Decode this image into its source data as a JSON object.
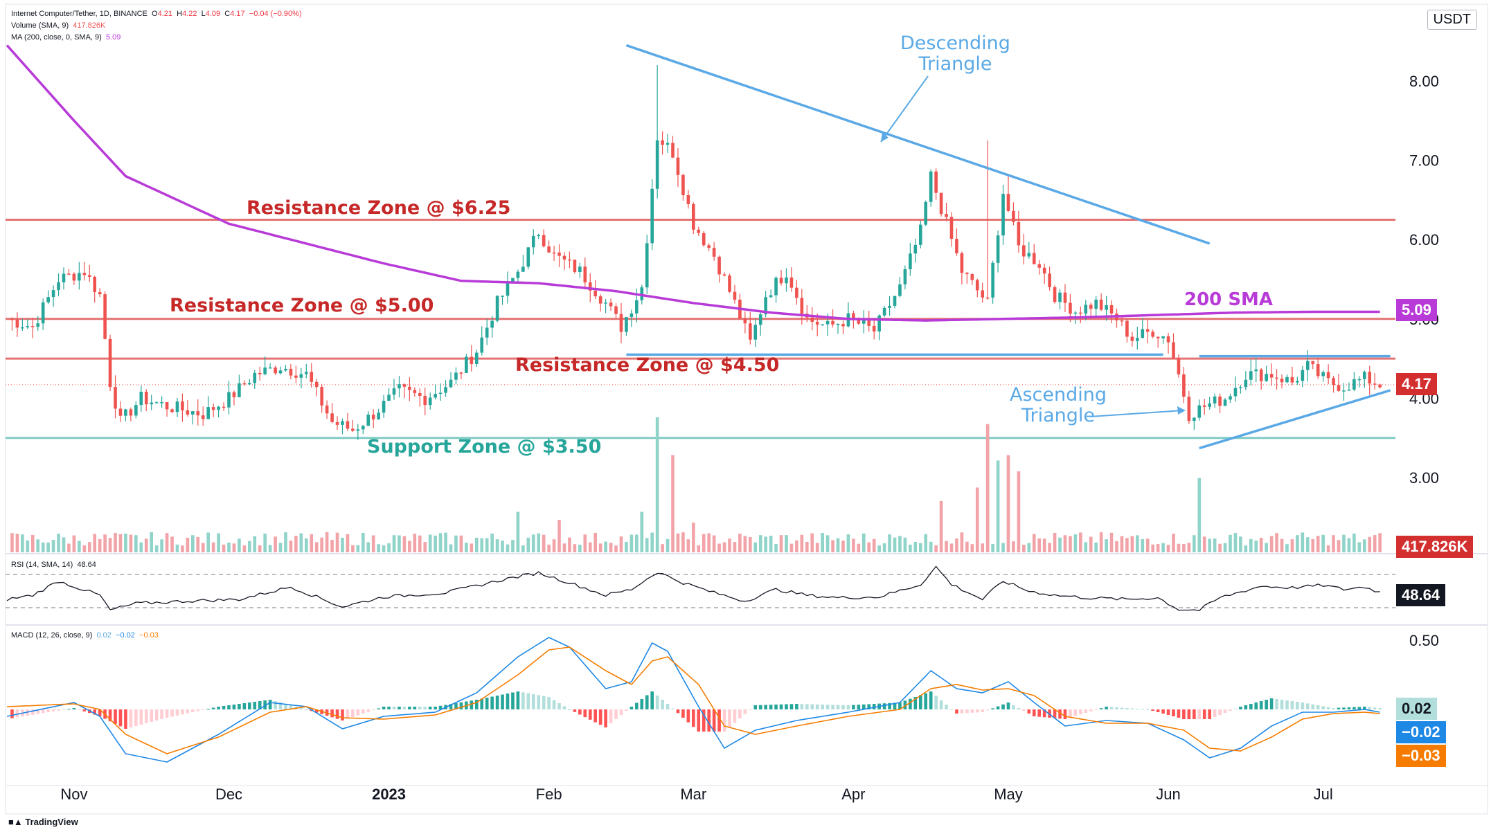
{
  "header": {
    "symbol": "Internet Computer/Tether, 1D, BINANCE",
    "o_label": "O",
    "o": "4.21",
    "h_label": "H",
    "h": "4.22",
    "l_label": "L",
    "l": "4.09",
    "c_label": "C",
    "c": "4.17",
    "change": "−0.04 (−0.90%)",
    "volume_label": "Volume (SMA, 9)",
    "volume_value": "417.826K",
    "ma_label": "MA (200, close, 0, SMA, 9)",
    "ma_value": "5.09",
    "rsi_label": "RSI (14, SMA, 14)",
    "rsi_value": "48.64",
    "macd_label": "MACD (12, 26, close, 9)",
    "macd_hist": "0.02",
    "macd_line": "−0.02",
    "macd_signal": "−0.03"
  },
  "currency_badge": "USDT",
  "branding": "TradingView",
  "price_tags": {
    "ma": "5.09",
    "last": "4.17",
    "volume": "417.826K",
    "rsi": "48.64",
    "macd_hist": "0.02",
    "macd_line": "−0.02",
    "macd_signal": "−0.03"
  },
  "annotations": {
    "descending_triangle": [
      "Descending",
      "Triangle"
    ],
    "ascending_triangle": [
      "Ascending",
      "Triangle"
    ],
    "res_625": "Resistance Zone @ $6.25",
    "res_500": "Resistance Zone @ $5.00",
    "res_450": "Resistance Zone @ $4.50",
    "sup_350": "Support Zone @ $3.50",
    "sma200": "200 SMA"
  },
  "colors": {
    "up": "#26a69a",
    "down": "#ef5350",
    "ma": "#b83bd8",
    "resistance": "#e57373",
    "support": "#80cbc4",
    "trendline": "#5aa9e6",
    "macd": "#1e88e5",
    "signal": "#f57c00"
  },
  "chart_data": [
    {
      "type": "candlestick",
      "title": "Internet Computer/Tether, 1D, BINANCE",
      "y_axis_ticks": [
        3.0,
        4.0,
        5.0,
        6.0,
        7.0,
        8.0
      ],
      "ylim": [
        2.35,
        8.8
      ],
      "x_tick_labels": [
        "Nov",
        "Dec",
        "2023",
        "Feb",
        "Mar",
        "Apr",
        "May",
        "Jun",
        "Jul"
      ],
      "x_tick_days": [
        0,
        30,
        61,
        92,
        120,
        151,
        181,
        212,
        242
      ],
      "day_range": [
        -13,
        256
      ],
      "anchor_closes": [
        [
          -13,
          5.0
        ],
        [
          -8,
          4.9
        ],
        [
          -3,
          5.5
        ],
        [
          2,
          5.6
        ],
        [
          5,
          5.3
        ],
        [
          7,
          4.2
        ],
        [
          9,
          3.7
        ],
        [
          13,
          4.0
        ],
        [
          18,
          3.9
        ],
        [
          25,
          3.8
        ],
        [
          30,
          4.0
        ],
        [
          35,
          4.3
        ],
        [
          40,
          4.4
        ],
        [
          45,
          4.3
        ],
        [
          50,
          3.7
        ],
        [
          54,
          3.6
        ],
        [
          58,
          3.8
        ],
        [
          63,
          4.1
        ],
        [
          68,
          4.0
        ],
        [
          73,
          4.2
        ],
        [
          78,
          4.6
        ],
        [
          82,
          5.2
        ],
        [
          86,
          5.6
        ],
        [
          90,
          6.1
        ],
        [
          93,
          5.8
        ],
        [
          98,
          5.6
        ],
        [
          103,
          5.2
        ],
        [
          106,
          4.9
        ],
        [
          110,
          5.4
        ],
        [
          113,
          7.3
        ],
        [
          116,
          7.1
        ],
        [
          120,
          6.2
        ],
        [
          124,
          5.8
        ],
        [
          128,
          5.2
        ],
        [
          131,
          4.7
        ],
        [
          134,
          5.3
        ],
        [
          138,
          5.6
        ],
        [
          142,
          5.0
        ],
        [
          146,
          4.9
        ],
        [
          150,
          5.0
        ],
        [
          155,
          4.85
        ],
        [
          160,
          5.4
        ],
        [
          164,
          6.1
        ],
        [
          166,
          6.8
        ],
        [
          169,
          6.2
        ],
        [
          172,
          5.6
        ],
        [
          177,
          5.2
        ],
        [
          180,
          6.6
        ],
        [
          183,
          5.9
        ],
        [
          187,
          5.7
        ],
        [
          190,
          5.3
        ],
        [
          194,
          5.1
        ],
        [
          198,
          5.2
        ],
        [
          202,
          5.0
        ],
        [
          205,
          4.75
        ],
        [
          209,
          4.85
        ],
        [
          212,
          4.75
        ],
        [
          214,
          4.3
        ],
        [
          216,
          3.8
        ],
        [
          219,
          3.9
        ],
        [
          223,
          4.0
        ],
        [
          227,
          4.3
        ],
        [
          232,
          4.3
        ],
        [
          236,
          4.2
        ],
        [
          239,
          4.4
        ],
        [
          243,
          4.2
        ],
        [
          246,
          4.15
        ],
        [
          250,
          4.25
        ],
        [
          252,
          4.2
        ],
        [
          253,
          4.17
        ]
      ],
      "spikes": [
        [
          113,
          8.2
        ],
        [
          177,
          7.25
        ],
        [
          181,
          6.8
        ],
        [
          168,
          6.1
        ]
      ],
      "levels": [
        {
          "name": "Resistance Zone @ $6.25",
          "value": 6.25
        },
        {
          "name": "Resistance Zone @ $5.00",
          "value": 5.0
        },
        {
          "name": "Resistance Zone @ $4.50",
          "value": 4.5
        },
        {
          "name": "Support Zone @ $3.50",
          "value": 3.5
        }
      ],
      "trendlines": [
        {
          "name": "Descending Triangle",
          "from": [
            107,
            8.45
          ],
          "to": [
            220,
            5.95
          ]
        },
        {
          "name": "Descending Triangle base",
          "from": [
            107,
            4.55
          ],
          "to": [
            211,
            4.55
          ]
        },
        {
          "name": "Ascending Triangle top",
          "from": [
            218,
            4.53
          ],
          "to": [
            255,
            4.53
          ]
        },
        {
          "name": "Ascending Triangle bottom",
          "from": [
            218,
            3.37
          ],
          "to": [
            255,
            4.1
          ]
        }
      ],
      "ma200_anchors": [
        [
          -13,
          8.45
        ],
        [
          0,
          7.5
        ],
        [
          10,
          6.8
        ],
        [
          20,
          6.5
        ],
        [
          30,
          6.2
        ],
        [
          45,
          5.95
        ],
        [
          60,
          5.7
        ],
        [
          75,
          5.48
        ],
        [
          90,
          5.45
        ],
        [
          105,
          5.35
        ],
        [
          120,
          5.2
        ],
        [
          135,
          5.08
        ],
        [
          150,
          5.0
        ],
        [
          165,
          4.98
        ],
        [
          180,
          5.0
        ],
        [
          195,
          5.02
        ],
        [
          210,
          5.05
        ],
        [
          225,
          5.08
        ],
        [
          240,
          5.09
        ],
        [
          253,
          5.09
        ]
      ],
      "last_price": 4.17,
      "ma_last": 5.09
    },
    {
      "type": "bar",
      "title": "Volume (SMA, 9)",
      "last_value": "417.826K",
      "spikes_relative": [
        [
          113,
          1.0
        ],
        [
          116,
          0.72
        ],
        [
          110,
          0.3
        ],
        [
          177,
          0.95
        ],
        [
          181,
          0.72
        ],
        [
          179,
          0.68
        ],
        [
          175,
          0.48
        ],
        [
          183,
          0.6
        ],
        [
          218,
          0.55
        ],
        [
          120,
          0.22
        ],
        [
          168,
          0.38
        ],
        [
          86,
          0.3
        ],
        [
          94,
          0.24
        ]
      ]
    },
    {
      "type": "line",
      "title": "RSI (14, SMA, 14)",
      "levels": [
        70,
        30
      ],
      "anchors": [
        [
          -13,
          40
        ],
        [
          -8,
          45
        ],
        [
          -3,
          62
        ],
        [
          5,
          45
        ],
        [
          7,
          27
        ],
        [
          12,
          35
        ],
        [
          22,
          38
        ],
        [
          32,
          40
        ],
        [
          42,
          55
        ],
        [
          52,
          31
        ],
        [
          60,
          43
        ],
        [
          72,
          48
        ],
        [
          84,
          65
        ],
        [
          90,
          72
        ],
        [
          96,
          60
        ],
        [
          103,
          45
        ],
        [
          108,
          52
        ],
        [
          113,
          73
        ],
        [
          118,
          60
        ],
        [
          124,
          48
        ],
        [
          130,
          38
        ],
        [
          136,
          52
        ],
        [
          142,
          45
        ],
        [
          148,
          42
        ],
        [
          156,
          43
        ],
        [
          164,
          58
        ],
        [
          167,
          79
        ],
        [
          170,
          58
        ],
        [
          176,
          40
        ],
        [
          180,
          62
        ],
        [
          185,
          50
        ],
        [
          190,
          45
        ],
        [
          196,
          42
        ],
        [
          204,
          40
        ],
        [
          210,
          42
        ],
        [
          214,
          28
        ],
        [
          218,
          27
        ],
        [
          222,
          42
        ],
        [
          230,
          56
        ],
        [
          236,
          54
        ],
        [
          242,
          57
        ],
        [
          246,
          52
        ],
        [
          250,
          55
        ],
        [
          253,
          48.64
        ]
      ],
      "last_value": 48.64
    },
    {
      "type": "line",
      "title": "MACD (12, 26, close, 9)",
      "y_axis_ticks": [
        0.5
      ],
      "series": [
        {
          "name": "MACD",
          "anchors": [
            [
              -13,
              -0.05
            ],
            [
              0,
              0.05
            ],
            [
              5,
              -0.05
            ],
            [
              10,
              -0.32
            ],
            [
              18,
              -0.38
            ],
            [
              28,
              -0.18
            ],
            [
              38,
              0.05
            ],
            [
              45,
              0.02
            ],
            [
              52,
              -0.14
            ],
            [
              60,
              -0.05
            ],
            [
              70,
              -0.02
            ],
            [
              78,
              0.12
            ],
            [
              86,
              0.38
            ],
            [
              92,
              0.52
            ],
            [
              96,
              0.45
            ],
            [
              103,
              0.15
            ],
            [
              108,
              0.2
            ],
            [
              112,
              0.48
            ],
            [
              115,
              0.42
            ],
            [
              121,
              0.02
            ],
            [
              126,
              -0.28
            ],
            [
              132,
              -0.15
            ],
            [
              140,
              -0.08
            ],
            [
              150,
              -0.02
            ],
            [
              160,
              0.05
            ],
            [
              166,
              0.28
            ],
            [
              171,
              0.15
            ],
            [
              176,
              0.12
            ],
            [
              181,
              0.2
            ],
            [
              186,
              0.05
            ],
            [
              192,
              -0.12
            ],
            [
              200,
              -0.08
            ],
            [
              208,
              -0.1
            ],
            [
              215,
              -0.22
            ],
            [
              220,
              -0.35
            ],
            [
              226,
              -0.28
            ],
            [
              232,
              -0.12
            ],
            [
              238,
              -0.02
            ],
            [
              244,
              -0.02
            ],
            [
              250,
              0.0
            ],
            [
              253,
              -0.02
            ]
          ]
        },
        {
          "name": "Signal",
          "anchors": [
            [
              -13,
              0.02
            ],
            [
              0,
              0.04
            ],
            [
              5,
              0.0
            ],
            [
              10,
              -0.18
            ],
            [
              18,
              -0.32
            ],
            [
              28,
              -0.2
            ],
            [
              38,
              -0.02
            ],
            [
              45,
              0.02
            ],
            [
              52,
              -0.06
            ],
            [
              60,
              -0.07
            ],
            [
              70,
              -0.04
            ],
            [
              78,
              0.05
            ],
            [
              86,
              0.25
            ],
            [
              92,
              0.43
            ],
            [
              96,
              0.45
            ],
            [
              103,
              0.28
            ],
            [
              108,
              0.18
            ],
            [
              112,
              0.35
            ],
            [
              115,
              0.38
            ],
            [
              121,
              0.18
            ],
            [
              126,
              -0.12
            ],
            [
              132,
              -0.18
            ],
            [
              140,
              -0.12
            ],
            [
              150,
              -0.05
            ],
            [
              160,
              0.0
            ],
            [
              166,
              0.15
            ],
            [
              171,
              0.18
            ],
            [
              176,
              0.14
            ],
            [
              181,
              0.15
            ],
            [
              186,
              0.1
            ],
            [
              192,
              -0.05
            ],
            [
              200,
              -0.1
            ],
            [
              208,
              -0.1
            ],
            [
              215,
              -0.15
            ],
            [
              220,
              -0.28
            ],
            [
              226,
              -0.3
            ],
            [
              232,
              -0.2
            ],
            [
              238,
              -0.07
            ],
            [
              244,
              -0.03
            ],
            [
              250,
              -0.02
            ],
            [
              253,
              -0.03
            ]
          ]
        }
      ],
      "last_values": {
        "histogram": 0.02,
        "macd": -0.02,
        "signal": -0.03
      }
    }
  ]
}
